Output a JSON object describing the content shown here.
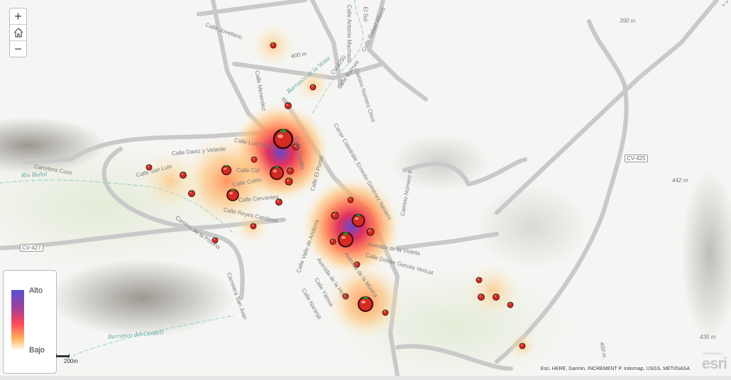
{
  "controls": {
    "zoom_in": "+",
    "home_icon": "home-icon",
    "zoom_out": "−",
    "expand_icon": "expand-icon"
  },
  "legend": {
    "high": "Alto",
    "low": "Bajo",
    "ramp_colors": [
      "#5a50d0",
      "#a0409a",
      "#ff4757",
      "#ffb45c",
      "#ffffff"
    ]
  },
  "scale": {
    "label": "200m"
  },
  "attribution": "Esri, HERE, Garmin, INCREMENT P, Intermap, USGS, METI/NASA",
  "esri_logo": {
    "powered": "POWERED BY",
    "brand": "esri"
  },
  "streets": [
    "Calle Jovellano",
    "Calle Menendez",
    "CV-4250",
    "Calle Balmes",
    "Camino Número Once",
    "Calle Antonio Machado",
    "Calle Rafael Alberti",
    "El Sol",
    "Carretera Cuco",
    "Calle Daoiz y Velarde",
    "Calle San Luis",
    "Calle Luis Vives",
    "Calle Cid",
    "Calle Colón",
    "Calle Cervantes",
    "Calle Reyes Católicos",
    "Camino de la Piscina",
    "Carretera San Juan",
    "Calle El Portal",
    "Calle Castillo",
    "Carrer Catedrátic Ernesto Giménez Navarro",
    "Camino Número 9",
    "Avenida de la Violeta",
    "Calle Doctor Garcés Vericat",
    "Avenida de la Música",
    "Avenida de la Hoya",
    "Calle Valle de Andorra",
    "Calle Yátova",
    "Calle Naranja"
  ],
  "water": [
    "Río Buñol",
    "Barranco de la Venta",
    "Barranco del Candell"
  ],
  "elevations": [
    "390 m",
    "400 m",
    "442 m",
    "435 m",
    "400 m"
  ],
  "road_shields": [
    "CV-427",
    "CV-425"
  ],
  "heatmap": {
    "marker_icon": "tomato-icon",
    "colors": {
      "high": "#5a50d0",
      "mid": "#ff4757",
      "low": "#ffb45c"
    }
  }
}
